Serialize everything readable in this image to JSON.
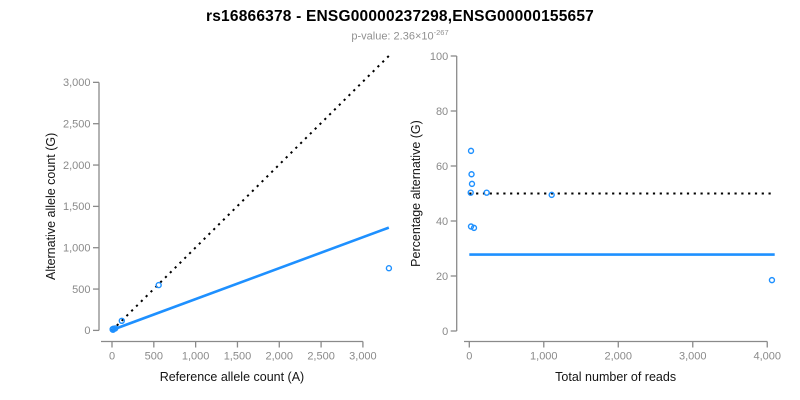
{
  "header": {
    "title": "rs16866378 - ENSG00000237298,ENSG00000155657",
    "pvalue_base": "p-value: 2.36×10",
    "pvalue_exponent": "-267"
  },
  "colors": {
    "point_blue": "#1E90FF",
    "fit_line_blue": "#1E90FF",
    "reference_line_black": "#000000",
    "axis_gray": "#8a8a8a",
    "axis_title_color": "#141414",
    "subtitle_gray": "#909090",
    "background": "#ffffff"
  },
  "chart_data": [
    {
      "type": "scatter",
      "panel": "left",
      "xlabel": "Reference allele count (A)",
      "ylabel": "Alternative allele count (G)",
      "xlim": [
        0,
        3300
      ],
      "ylim": [
        0,
        3320
      ],
      "xticks": [
        0,
        500,
        1000,
        1500,
        2000,
        2500,
        3000
      ],
      "xtick_labels": [
        "0",
        "500",
        "1,000",
        "1,500",
        "2,000",
        "2,500",
        "3,000"
      ],
      "yticks": [
        0,
        500,
        1000,
        1500,
        2000,
        2500,
        3000
      ],
      "ytick_labels": [
        "0",
        "500",
        "1,000",
        "1,500",
        "2,000",
        "2,500",
        "3,000"
      ],
      "grid": false,
      "legend": null,
      "points": [
        [
          8,
          15
        ],
        [
          13,
          17
        ],
        [
          17,
          19
        ],
        [
          9,
          10
        ],
        [
          14,
          9
        ],
        [
          39,
          24
        ],
        [
          117,
          116
        ],
        [
          558,
          548
        ],
        [
          3311,
          752
        ]
      ],
      "lines": [
        {
          "name": "identity-reference-line",
          "style": "dotted",
          "color": "black",
          "x": [
            0,
            3310
          ],
          "y": [
            0,
            3320
          ]
        },
        {
          "name": "regression-fit-line",
          "style": "solid",
          "color": "blue",
          "x": [
            0,
            3310
          ],
          "y": [
            5,
            1243
          ]
        }
      ]
    },
    {
      "type": "scatter",
      "panel": "right",
      "xlabel": "Total number of reads",
      "ylabel": "Percentage alternative (G)",
      "xlim": [
        0,
        4100
      ],
      "ylim": [
        0,
        100
      ],
      "xticks": [
        0,
        1000,
        2000,
        3000,
        4000
      ],
      "xtick_labels": [
        "0",
        "1,000",
        "2,000",
        "3,000",
        "4,000"
      ],
      "yticks": [
        0,
        20,
        40,
        60,
        80,
        100
      ],
      "ytick_labels": [
        "0",
        "20",
        "40",
        "60",
        "80",
        "100"
      ],
      "grid": false,
      "legend": null,
      "points": [
        [
          23,
          65.5
        ],
        [
          30,
          57
        ],
        [
          36,
          53.5
        ],
        [
          19,
          50.3
        ],
        [
          233,
          50.3
        ],
        [
          1106,
          49.5
        ],
        [
          23,
          38
        ],
        [
          63,
          37.5
        ],
        [
          4063,
          18.5
        ]
      ],
      "lines": [
        {
          "name": "expected-50pct-line",
          "style": "dotted",
          "color": "black",
          "x": [
            0,
            4063
          ],
          "y": [
            50,
            50
          ]
        },
        {
          "name": "mean-percentage-line",
          "style": "solid",
          "color": "blue",
          "x": [
            0,
            4100
          ],
          "y": [
            27.8,
            27.8
          ]
        }
      ]
    }
  ]
}
